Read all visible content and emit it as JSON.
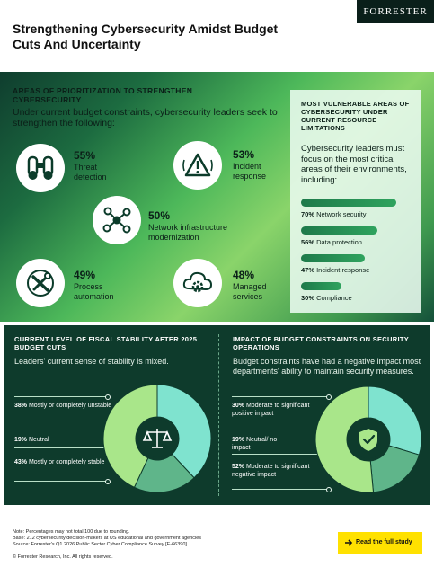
{
  "header": {
    "title": "Strengthening Cybersecurity Amidst Budget Cuts And Uncertainty",
    "brand": "FORRESTER"
  },
  "priorities": {
    "heading": "AREAS OF PRIORITIZATION TO STRENGTHEN CYBERSECURITY",
    "subtitle": "Under current budget constraints, cybersecurity leaders seek to strengthen the following:",
    "items": [
      {
        "pct": "55%",
        "label": "Threat detection",
        "icon": "binoculars-icon"
      },
      {
        "pct": "53%",
        "label": "Incident response",
        "icon": "warning-icon"
      },
      {
        "pct": "50%",
        "label": "Network infrastructure modernization",
        "icon": "network-icon"
      },
      {
        "pct": "49%",
        "label": "Process automation",
        "icon": "tools-icon"
      },
      {
        "pct": "48%",
        "label": "Managed services",
        "icon": "cloud-gear-icon"
      }
    ]
  },
  "vulnerable": {
    "title": "MOST VULNERABLE AREAS OF CYBERSECURITY UNDER CURRENT RESOURCE LIMITATIONS",
    "subtitle": "Cybersecurity leaders must focus on the most critical areas of their environments, including:",
    "bars": [
      {
        "pct": "70%",
        "label": "Network security",
        "value": 70
      },
      {
        "pct": "56%",
        "label": "Data protection",
        "value": 56
      },
      {
        "pct": "47%",
        "label": "Incident response",
        "value": 47
      },
      {
        "pct": "30%",
        "label": "Compliance",
        "value": 30
      }
    ]
  },
  "fiscal": {
    "title": "CURRENT LEVEL OF FISCAL STABILITY AFTER 2025 BUDGET CUTS",
    "subtitle": "Leaders' current sense of stability is mixed.",
    "slices": [
      {
        "pct": "38%",
        "label": "Mostly or completely unstable",
        "value": 38,
        "color": "#7fe3cf"
      },
      {
        "pct": "19%",
        "label": "Neutral",
        "value": 19,
        "color": "#5fb58a"
      },
      {
        "pct": "43%",
        "label": "Mostly or completely stable",
        "value": 43,
        "color": "#a9e68a"
      }
    ]
  },
  "impact": {
    "title": "IMPACT OF BUDGET CONSTRAINTS ON SECURITY OPERATIONS",
    "subtitle": "Budget constraints have had a negative impact most departments' ability to maintain security measures.",
    "slices": [
      {
        "pct": "30%",
        "label": "Moderate to significant positive impact",
        "value": 30,
        "color": "#7fe3cf"
      },
      {
        "pct": "19%",
        "label": "Neutral/ no impact",
        "value": 19,
        "color": "#5fb58a"
      },
      {
        "pct": "52%",
        "label": "Moderate to significant negative impact",
        "value": 52,
        "color": "#a9e68a"
      }
    ]
  },
  "footer": {
    "note1": "Note: Percentages may not total 100 due to rounding.",
    "note2": "Base: 212 cybersecurity decision-makers at US educational and government agencies",
    "note3": "Source: Forrester's Q1 2026 Public Sector Cyber Compliance Survey [E-66390]",
    "copyright": "© Forrester Research, Inc. All rights reserved.",
    "cta": "Read the full study"
  }
}
